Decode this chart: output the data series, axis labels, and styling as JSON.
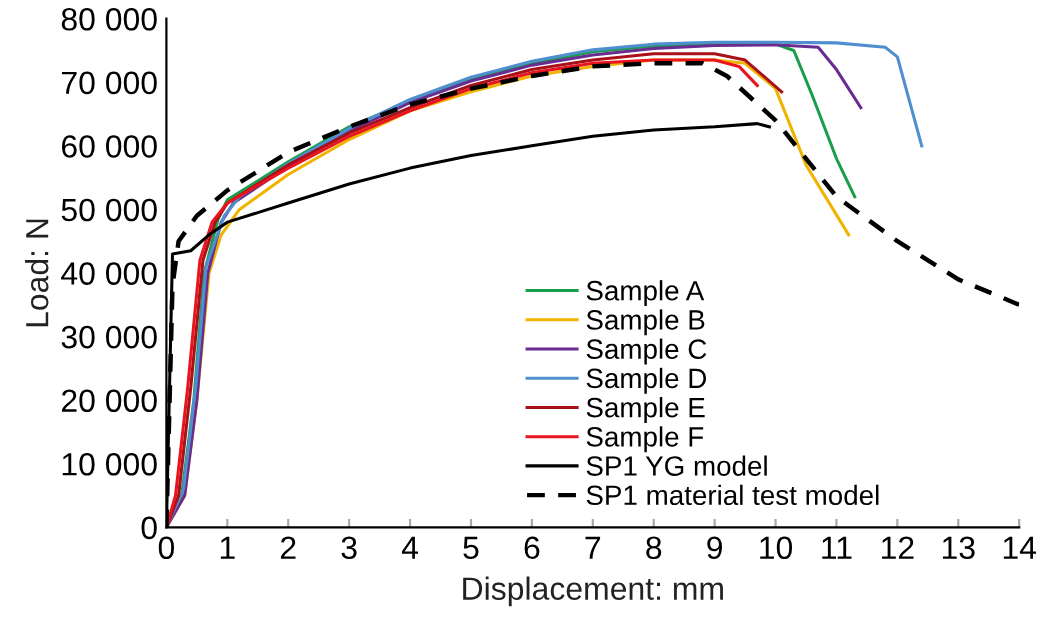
{
  "chart_data": {
    "type": "line",
    "xlabel": "Displacement: mm",
    "ylabel": "Load: N",
    "xlim": [
      0,
      14
    ],
    "xticks": [
      0,
      1,
      2,
      3,
      4,
      5,
      6,
      7,
      8,
      9,
      10,
      11,
      12,
      13,
      14
    ],
    "ylim": [
      0,
      80000
    ],
    "yticks": [
      {
        "value": 0,
        "label": "0"
      },
      {
        "value": 10000,
        "label": "10 000"
      },
      {
        "value": 20000,
        "label": "20 000"
      },
      {
        "value": 30000,
        "label": "30 000"
      },
      {
        "value": 40000,
        "label": "40 000"
      },
      {
        "value": 50000,
        "label": "50 000"
      },
      {
        "value": 60000,
        "label": "60 000"
      },
      {
        "value": 70000,
        "label": "70 000"
      },
      {
        "value": 80000,
        "label": "80 000"
      }
    ],
    "grid": false,
    "legend": "bottom",
    "marker": "none",
    "series": [
      {
        "name": "Sample A",
        "color": "#1a9e4a",
        "line_style": "solid",
        "x": [
          0,
          0.25,
          0.45,
          0.62,
          0.85,
          1,
          2,
          3,
          4,
          5,
          6,
          7,
          8,
          9,
          10,
          10.3,
          10.6,
          11,
          11.3
        ],
        "values": [
          0,
          5000,
          20000,
          40000,
          48500,
          51500,
          57500,
          63000,
          67000,
          70500,
          73000,
          74800,
          75700,
          76000,
          76000,
          75000,
          68000,
          58000,
          52000
        ]
      },
      {
        "name": "Sample B",
        "color": "#f0b400",
        "line_style": "solid",
        "x": [
          0,
          0.3,
          0.5,
          0.7,
          0.9,
          1.2,
          2,
          3,
          4,
          5,
          6,
          7,
          8,
          9,
          9.5,
          10,
          10.5,
          11.2
        ],
        "values": [
          0,
          5000,
          20000,
          40000,
          46000,
          50000,
          55500,
          61000,
          65500,
          68500,
          71000,
          72500,
          73500,
          73500,
          73000,
          69000,
          57000,
          46000
        ]
      },
      {
        "name": "Sample C",
        "color": "#6a2c91",
        "line_style": "solid",
        "x": [
          0,
          0.3,
          0.5,
          0.68,
          0.9,
          1.1,
          2,
          3,
          4,
          5,
          6,
          7,
          8,
          9,
          10,
          10.7,
          11,
          11.4
        ],
        "values": [
          0,
          5000,
          20000,
          40000,
          48000,
          51000,
          56800,
          62300,
          66800,
          70200,
          72700,
          74300,
          75300,
          75800,
          75900,
          75500,
          72000,
          66000
        ]
      },
      {
        "name": "Sample D",
        "color": "#4f8fcf",
        "line_style": "solid",
        "x": [
          0,
          0.28,
          0.48,
          0.65,
          0.95,
          1.2,
          2,
          3,
          4,
          5,
          6,
          7,
          8,
          9,
          10,
          11,
          11.8,
          12,
          12.4
        ],
        "values": [
          0,
          6000,
          22000,
          41000,
          49000,
          52000,
          57200,
          62700,
          67300,
          70800,
          73300,
          75100,
          76000,
          76300,
          76300,
          76200,
          75500,
          74000,
          60000
        ]
      },
      {
        "name": "Sample E",
        "color": "#a8101a",
        "line_style": "solid",
        "x": [
          0,
          0.2,
          0.4,
          0.6,
          0.8,
          1,
          2,
          3,
          4,
          5,
          6,
          7,
          8,
          9,
          9.5,
          9.8,
          10.1
        ],
        "values": [
          0,
          5000,
          22000,
          42000,
          48000,
          51000,
          57000,
          62000,
          66000,
          69500,
          72000,
          73500,
          74500,
          74500,
          73500,
          71000,
          68500
        ]
      },
      {
        "name": "Sample F",
        "color": "#e8141e",
        "line_style": "solid",
        "x": [
          0,
          0.15,
          0.35,
          0.55,
          0.75,
          1,
          2,
          3,
          4,
          5,
          6,
          7,
          8,
          9,
          9.4,
          9.7
        ],
        "values": [
          0,
          5000,
          22000,
          42000,
          48000,
          51000,
          56500,
          61500,
          65500,
          69000,
          71500,
          73000,
          73500,
          73500,
          72500,
          69500
        ]
      },
      {
        "name": "SP1 YG model",
        "color": "#000000",
        "line_style": "solid",
        "x": [
          0,
          0.1,
          0.4,
          0.7,
          1,
          1.5,
          2,
          3,
          4,
          5,
          6,
          7,
          8,
          9,
          9.7,
          9.9
        ],
        "values": [
          0,
          43000,
          43500,
          46000,
          48000,
          49500,
          51000,
          54000,
          56500,
          58500,
          60000,
          61500,
          62500,
          63000,
          63500,
          63000
        ]
      },
      {
        "name": "SP1 material test model",
        "color": "#000000",
        "line_style": "dashed",
        "x": [
          0,
          0.1,
          0.2,
          0.5,
          1,
          2,
          3,
          4,
          5,
          6,
          7,
          8,
          8.8,
          9.2,
          10,
          11,
          12,
          13,
          14
        ],
        "values": [
          0,
          38000,
          45000,
          49000,
          53000,
          59000,
          63000,
          66500,
          69000,
          71000,
          72500,
          73000,
          73000,
          71000,
          64000,
          52000,
          45000,
          39000,
          35000
        ]
      }
    ]
  }
}
